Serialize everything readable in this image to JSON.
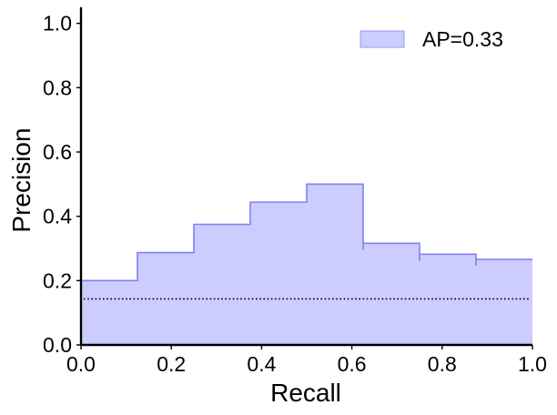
{
  "chart_data": {
    "type": "area",
    "title": "",
    "xlabel": "Recall",
    "ylabel": "Precision",
    "xlim": [
      0.0,
      1.0
    ],
    "ylim": [
      0.0,
      1.05
    ],
    "xticks": [
      "0.0",
      "0.2",
      "0.4",
      "0.6",
      "0.8",
      "1.0"
    ],
    "yticks": [
      "0.0",
      "0.2",
      "0.4",
      "0.6",
      "0.8",
      "1.0"
    ],
    "grid": false,
    "legend_position": "top-right",
    "series": [
      {
        "name": "AP=0.33",
        "style": "step-filled",
        "color": "#8080f0",
        "fill": "#ccccff",
        "x": [
          0.0,
          0.125,
          0.25,
          0.375,
          0.5,
          0.625,
          0.75,
          0.875,
          1.0
        ],
        "y": [
          0.2,
          0.287,
          0.375,
          0.444,
          0.5,
          0.316,
          0.282,
          0.266,
          0.266
        ]
      }
    ],
    "baseline": {
      "value": 0.143,
      "style": "dotted",
      "color": "#000000"
    }
  }
}
